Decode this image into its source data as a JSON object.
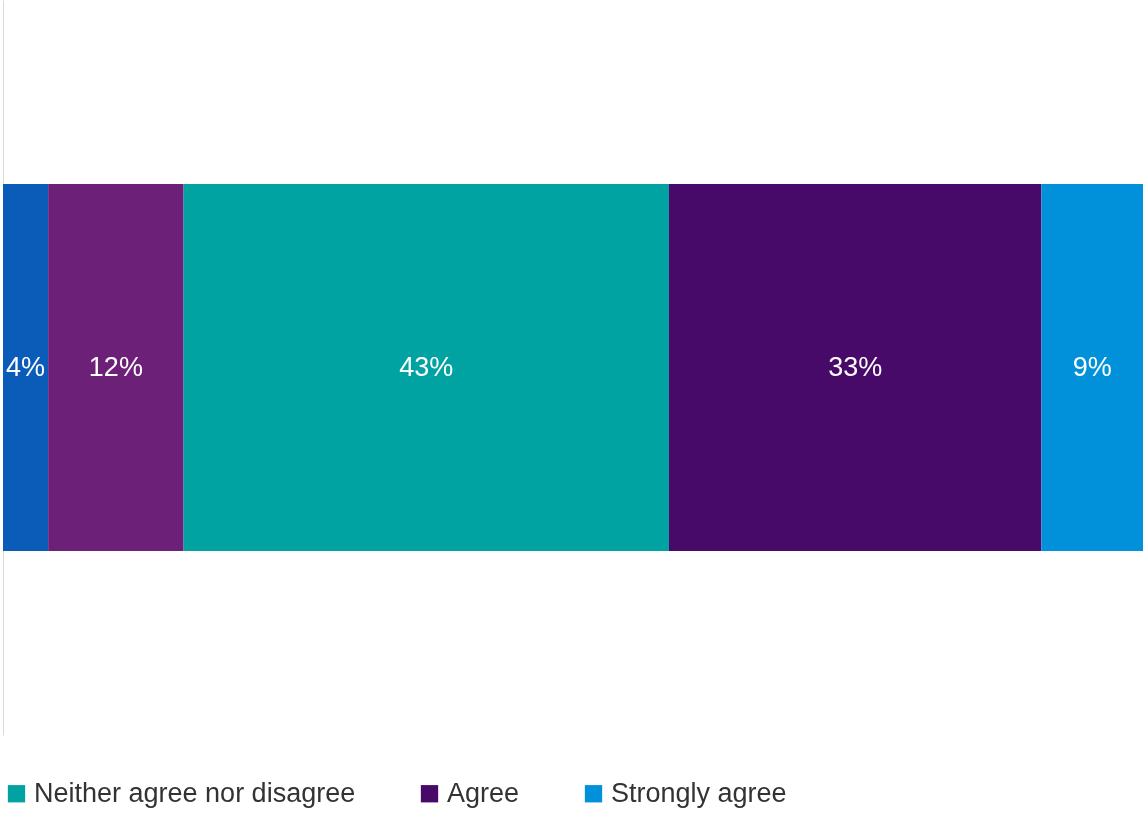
{
  "chart_data": {
    "type": "bar",
    "orientation": "horizontal",
    "stacked": true,
    "categories": [
      null
    ],
    "series": [
      {
        "color": "#0a5cb8",
        "values": [
          4
        ],
        "value_labels": [
          "4%"
        ]
      },
      {
        "color": "#6d2077",
        "values": [
          12
        ],
        "value_labels": [
          "12%"
        ]
      },
      {
        "name": "Neither agree nor disagree",
        "color": "#00a3a1",
        "values": [
          43
        ],
        "value_labels": [
          "43%"
        ]
      },
      {
        "name": "Agree",
        "color": "#470a68",
        "values": [
          33
        ],
        "value_labels": [
          "33%"
        ]
      },
      {
        "name": "Strongly agree",
        "color": "#0091da",
        "values": [
          9
        ],
        "value_labels": [
          "9%"
        ]
      }
    ],
    "xlim": [
      0,
      101
    ],
    "legend": "bottom",
    "tick_labels": false
  }
}
